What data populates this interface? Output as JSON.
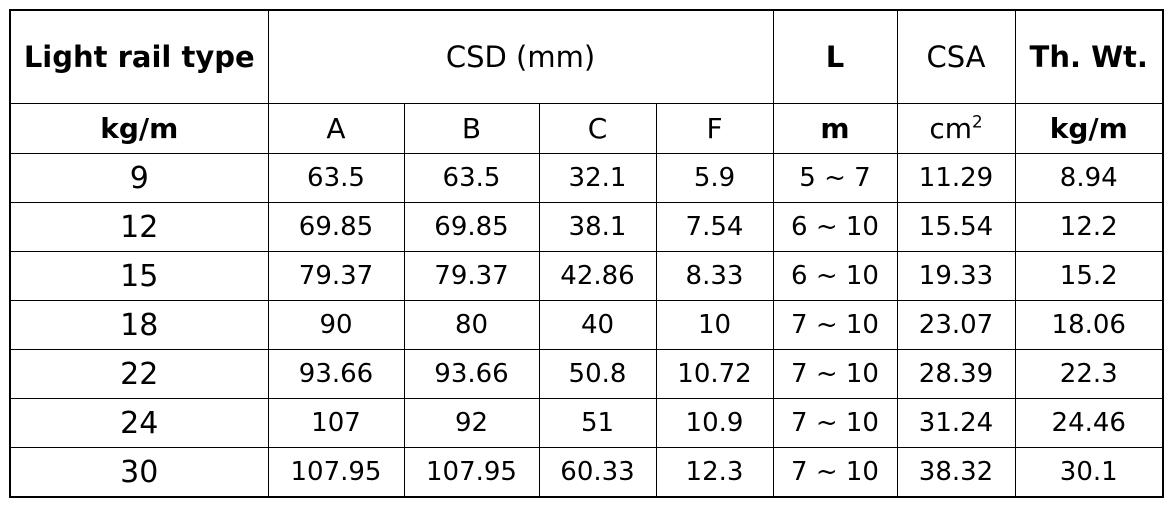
{
  "header": {
    "type_label": "Light rail type",
    "csd_label": "CSD (mm)",
    "l_label": "L",
    "csa_label": "CSA",
    "thwt_label": "Th. Wt."
  },
  "units": {
    "type_unit": "kg/m",
    "a": "A",
    "b": "B",
    "c": "C",
    "f": "F",
    "l_unit": "m",
    "csa_unit_base": "cm",
    "csa_unit_exp": "2",
    "thwt_unit": "kg/m"
  },
  "rows": [
    {
      "type": "9",
      "a": "63.5",
      "b": "63.5",
      "c": "32.1",
      "f": "5.9",
      "l": "5 ~ 7",
      "csa": "11.29",
      "wt": "8.94"
    },
    {
      "type": "12",
      "a": "69.85",
      "b": "69.85",
      "c": "38.1",
      "f": "7.54",
      "l": "6 ~ 10",
      "csa": "15.54",
      "wt": "12.2"
    },
    {
      "type": "15",
      "a": "79.37",
      "b": "79.37",
      "c": "42.86",
      "f": "8.33",
      "l": "6 ~ 10",
      "csa": "19.33",
      "wt": "15.2"
    },
    {
      "type": "18",
      "a": "90",
      "b": "80",
      "c": "40",
      "f": "10",
      "l": "7 ~ 10",
      "csa": "23.07",
      "wt": "18.06"
    },
    {
      "type": "22",
      "a": "93.66",
      "b": "93.66",
      "c": "50.8",
      "f": "10.72",
      "l": "7 ~ 10",
      "csa": "28.39",
      "wt": "22.3"
    },
    {
      "type": "24",
      "a": "107",
      "b": "92",
      "c": "51",
      "f": "10.9",
      "l": "7 ~ 10",
      "csa": "31.24",
      "wt": "24.46"
    },
    {
      "type": "30",
      "a": "107.95",
      "b": "107.95",
      "c": "60.33",
      "f": "12.3",
      "l": "7 ~ 10",
      "csa": "38.32",
      "wt": "30.1"
    }
  ]
}
